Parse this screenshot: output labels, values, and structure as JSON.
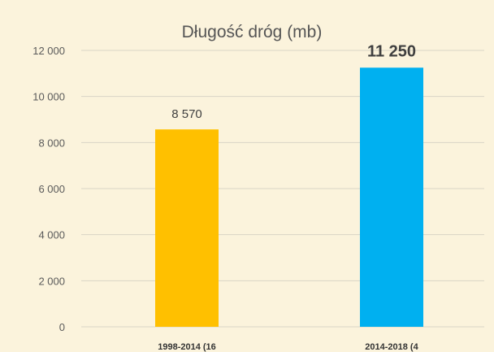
{
  "chart_data": {
    "type": "bar",
    "title": "Długość dróg (mb)",
    "categories": [
      "1998-2014 (16",
      "2014-2018 (4"
    ],
    "values": [
      8570,
      11250
    ],
    "value_labels": [
      "8 570",
      "11 250"
    ],
    "colors": [
      "#ffc000",
      "#00b0f0"
    ],
    "ylim": [
      0,
      12000
    ],
    "yticks": [
      0,
      2000,
      4000,
      6000,
      8000,
      10000,
      12000
    ],
    "ytick_labels": [
      "0",
      "2 000",
      "4 000",
      "6 000",
      "8 000",
      "10 000",
      "12 000"
    ],
    "grid": true,
    "legend": false
  }
}
